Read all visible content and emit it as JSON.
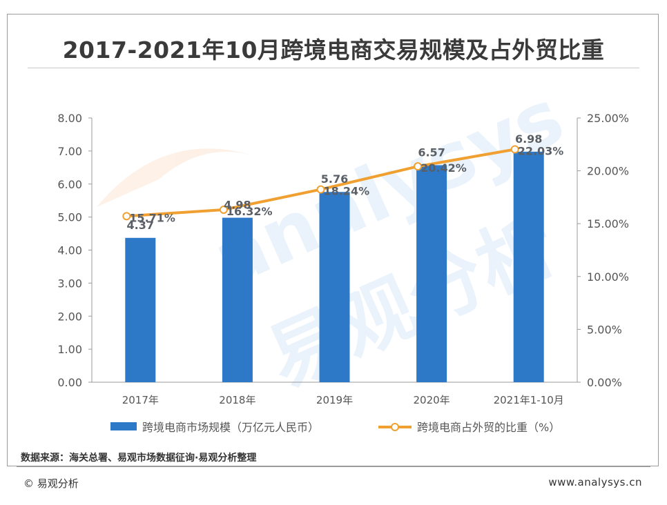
{
  "title": "2017-2021年10月跨境电商交易规模及占外贸比重",
  "source": "数据来源：海关总署、易观市场数据征询·易观分析整理",
  "copyright": "© 易观分析",
  "website": "www.analysys.cn",
  "watermark": {
    "logo_text": "analysys",
    "brand_text": "易观分析"
  },
  "chart_data": {
    "type": "bar+line",
    "categories": [
      "2017年",
      "2018年",
      "2019年",
      "2020年",
      "2021年1-10月"
    ],
    "series": [
      {
        "name": "跨境电商市场规模（万亿元人民币）",
        "type": "bar",
        "axis": "left",
        "values": [
          4.37,
          4.98,
          5.76,
          6.57,
          6.98
        ],
        "labels": [
          "4.37",
          "4.98",
          "5.76",
          "6.57",
          "6.98"
        ],
        "color": "#2e78c8"
      },
      {
        "name": "跨境电商占外贸的比重（%）",
        "type": "line",
        "axis": "right",
        "values": [
          15.71,
          16.32,
          18.24,
          20.42,
          22.03
        ],
        "labels": [
          "15.71%",
          "16.32%",
          "18.24%",
          "20.42%",
          "22.03%"
        ],
        "color": "#f0a030"
      }
    ],
    "y_left": {
      "min": 0,
      "max": 8,
      "ticks": [
        "0.00",
        "1.00",
        "2.00",
        "3.00",
        "4.00",
        "5.00",
        "6.00",
        "7.00",
        "8.00"
      ]
    },
    "y_right": {
      "min": 0,
      "max": 25,
      "ticks": [
        "0.00%",
        "5.00%",
        "10.00%",
        "15.00%",
        "20.00%",
        "25.00%"
      ]
    },
    "legend_position": "bottom",
    "grid": false
  }
}
